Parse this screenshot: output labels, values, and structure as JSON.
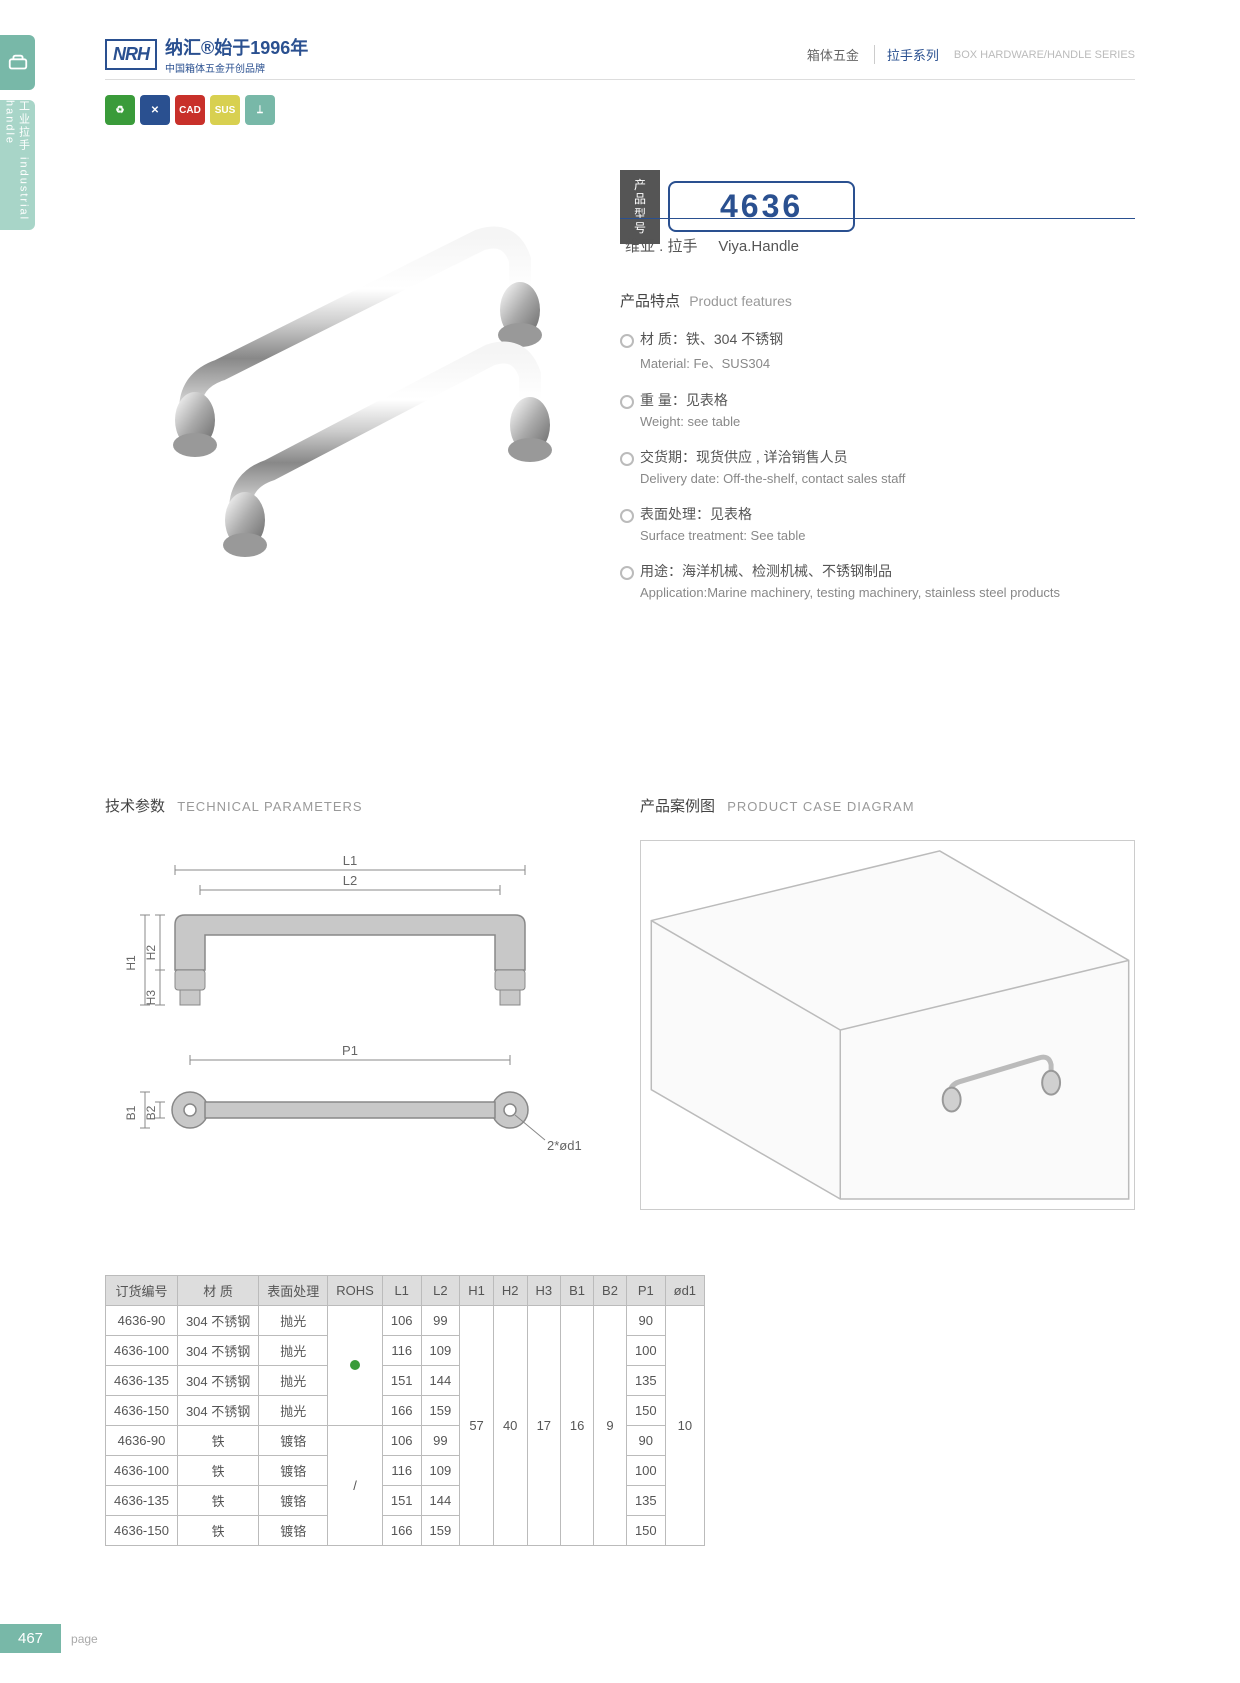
{
  "sideLabel": "工业拉手  industrial handle",
  "logo": {
    "badge": "NRH",
    "main": "纳汇®始于1996年",
    "sub": "中国箱体五金开创品牌"
  },
  "header": {
    "category": "箱体五金",
    "series": "拉手系列",
    "en": "BOX HARDWARE/HANDLE SERIES"
  },
  "iconColors": [
    "#3a9b3a",
    "#2a5090",
    "#c8302a",
    "#d8d050",
    "#78b8a8"
  ],
  "iconLabels": [
    "♻",
    "✕",
    "CAD",
    "SUS",
    "⟘"
  ],
  "model": {
    "label": "产品型号",
    "number": "4636"
  },
  "productName": {
    "cn": "维亚 . 拉手",
    "en": "Viya.Handle"
  },
  "featuresTitle": {
    "cn": "产品特点",
    "en": "Product features"
  },
  "features": [
    {
      "cn": "材 质：铁、304 不锈钢",
      "en": "Material: Fe、SUS304"
    },
    {
      "cn": "重 量：见表格",
      "en": "Weight: see table"
    },
    {
      "cn": "交货期：现货供应 , 详洽销售人员",
      "en": "Delivery date: Off-the-shelf, contact sales staff"
    },
    {
      "cn": "表面处理：见表格",
      "en": "Surface treatment: See table"
    },
    {
      "cn": "用途：海洋机械、检测机械、不锈钢制品",
      "en": "Application:Marine machinery, testing machinery, stainless steel products"
    }
  ],
  "techTitle": {
    "cn": "技术参数",
    "en": "TECHNICAL PARAMETERS"
  },
  "caseTitle": {
    "cn": "产品案例图",
    "en": "PRODUCT CASE DIAGRAM"
  },
  "diagramLabels": {
    "L1": "L1",
    "L2": "L2",
    "H1": "H1",
    "H2": "H2",
    "H3": "H3",
    "P1": "P1",
    "B1": "B1",
    "B2": "B2",
    "d1": "2*ød1"
  },
  "table": {
    "headers": [
      "订货编号",
      "材 质",
      "表面处理",
      "ROHS",
      "L1",
      "L2",
      "H1",
      "H2",
      "H3",
      "B1",
      "B2",
      "P1",
      "ød1"
    ],
    "rows": [
      [
        "4636-90",
        "304 不锈钢",
        "抛光",
        "",
        "106",
        "99",
        "",
        "",
        "",
        "",
        "",
        "90",
        ""
      ],
      [
        "4636-100",
        "304 不锈钢",
        "抛光",
        "",
        "116",
        "109",
        "",
        "",
        "",
        "",
        "",
        "100",
        ""
      ],
      [
        "4636-135",
        "304 不锈钢",
        "抛光",
        "",
        "151",
        "144",
        "",
        "",
        "",
        "",
        "",
        "135",
        ""
      ],
      [
        "4636-150",
        "304 不锈钢",
        "抛光",
        "",
        "166",
        "159",
        "",
        "",
        "",
        "",
        "",
        "150",
        ""
      ],
      [
        "4636-90",
        "铁",
        "镀铬",
        "",
        "106",
        "99",
        "",
        "",
        "",
        "",
        "",
        "90",
        ""
      ],
      [
        "4636-100",
        "铁",
        "镀铬",
        "",
        "116",
        "109",
        "",
        "",
        "",
        "",
        "",
        "100",
        ""
      ],
      [
        "4636-135",
        "铁",
        "镀铬",
        "",
        "151",
        "144",
        "",
        "",
        "",
        "",
        "",
        "135",
        ""
      ],
      [
        "4636-150",
        "铁",
        "镀铬",
        "",
        "166",
        "159",
        "",
        "",
        "",
        "",
        "",
        "150",
        ""
      ]
    ],
    "merged": {
      "rohs1": "●",
      "rohs2": "/",
      "H1": "57",
      "H2": "40",
      "H3": "17",
      "B1": "16",
      "B2": "9",
      "d1": "10"
    }
  },
  "pageNum": "467",
  "pageLabel": "page"
}
